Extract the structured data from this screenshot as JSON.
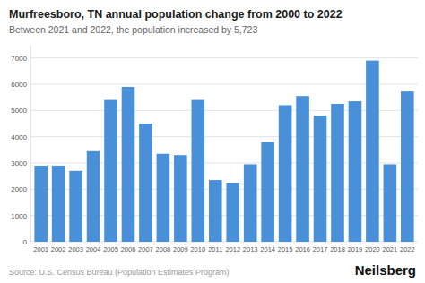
{
  "chart_data": {
    "type": "bar",
    "title": "Murfreesboro, TN annual population change from 2000 to 2022",
    "subtitle": "Between 2021 and 2022, the population increased by 5,723",
    "source": "Source: U.S. Census Bureau (Population Estimates Program)",
    "brand": "Neilsberg",
    "categories": [
      "2001",
      "2002",
      "2003",
      "2004",
      "2005",
      "2006",
      "2007",
      "2008",
      "2009",
      "2010",
      "2011",
      "2012",
      "2013",
      "2014",
      "2015",
      "2016",
      "2017",
      "2018",
      "2019",
      "2020",
      "2021",
      "2022"
    ],
    "values": [
      2900,
      2900,
      2700,
      3450,
      5400,
      5900,
      4500,
      3350,
      3300,
      5400,
      2350,
      2250,
      2950,
      3800,
      5200,
      5550,
      4800,
      5250,
      5350,
      6900,
      2950,
      5723
    ],
    "color": "#4a90d9",
    "ylim": [
      0,
      7500
    ],
    "yticks": [
      0,
      1000,
      2000,
      3000,
      4000,
      5000,
      6000,
      7000
    ],
    "grid": true
  }
}
